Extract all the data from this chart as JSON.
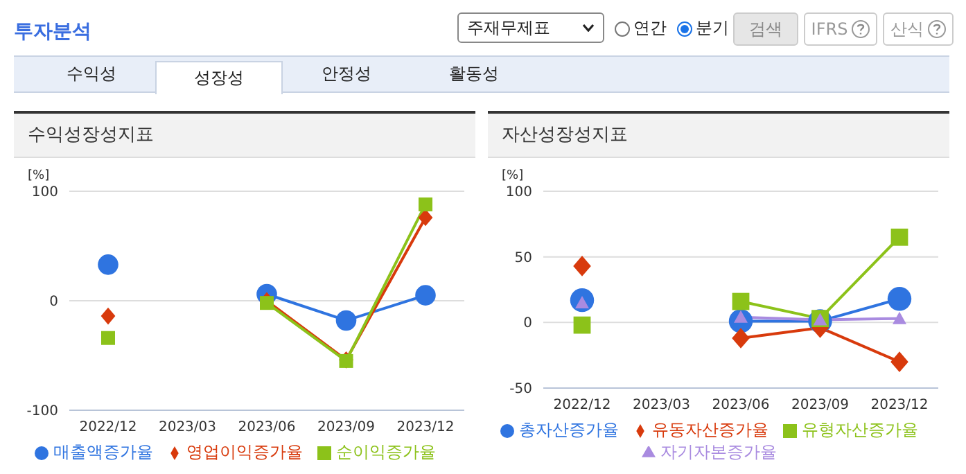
{
  "chart_data": [
    {
      "type": "other",
      "title": "투자분석",
      "annotations": [
        "주재무제표",
        "연간",
        "분기",
        "검색",
        "IFRS",
        "산식",
        "수익성",
        "성장성",
        "안정성",
        "활동성"
      ]
    },
    {
      "type": "line",
      "title": "수익성장성지표",
      "ylabel": "[%]",
      "categories": [
        "2022/12",
        "2023/03",
        "2023/06",
        "2023/09",
        "2023/12"
      ],
      "ylim": [
        -100,
        100
      ],
      "yticks": [
        -100,
        0,
        100
      ],
      "grid": "y",
      "legend": "bottom",
      "series": [
        {
          "name": "매출액증가율",
          "color": "#2f74e0",
          "marker": "circle",
          "values": [
            33,
            null,
            6,
            -18,
            5
          ]
        },
        {
          "name": "영업이익증가율",
          "color": "#d83a0c",
          "marker": "diamond",
          "values": [
            -14,
            null,
            0,
            -54,
            76
          ]
        },
        {
          "name": "순이익증가율",
          "color": "#8cc21a",
          "marker": "square",
          "values": [
            -34,
            null,
            -2,
            -55,
            88
          ]
        }
      ]
    },
    {
      "type": "line",
      "title": "자산성장성지표",
      "ylabel": "[%]",
      "categories": [
        "2022/12",
        "2023/03",
        "2023/06",
        "2023/09",
        "2023/12"
      ],
      "ylim": [
        -50,
        100
      ],
      "yticks": [
        -50,
        0,
        50,
        100
      ],
      "grid": "y",
      "legend": "bottom",
      "series": [
        {
          "name": "총자산증가율",
          "color": "#2f74e0",
          "marker": "circle",
          "values": [
            17,
            null,
            1,
            1,
            18
          ]
        },
        {
          "name": "유동자산증가율",
          "color": "#d83a0c",
          "marker": "diamond",
          "values": [
            43,
            null,
            -12,
            -4,
            -30
          ]
        },
        {
          "name": "유형자산증가율",
          "color": "#8cc21a",
          "marker": "square",
          "values": [
            -2,
            null,
            16,
            3,
            65
          ]
        },
        {
          "name": "자기자본증가율",
          "color": "#a98be0",
          "marker": "triangle",
          "values": [
            15,
            null,
            4,
            2,
            3
          ]
        }
      ]
    }
  ]
}
